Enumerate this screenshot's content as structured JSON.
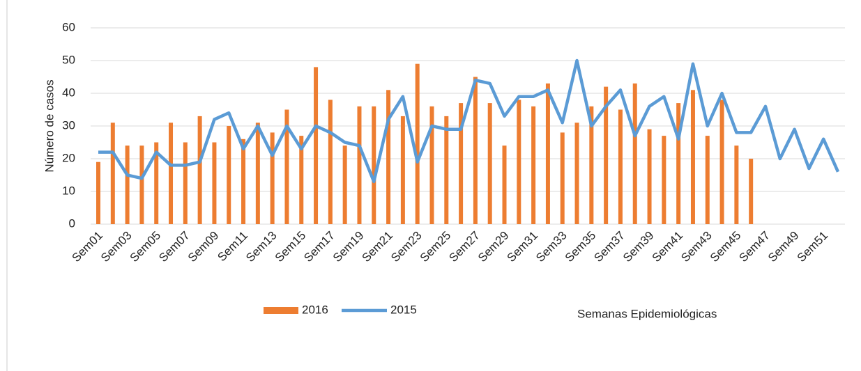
{
  "chart_data": {
    "type": "bar_line",
    "y_label": "Número de casos",
    "x_label": "Semanas Epidemiológicas",
    "categories": [
      "Sem01",
      null,
      "Sem03",
      null,
      "Sem05",
      null,
      "Sem07",
      null,
      "Sem09",
      null,
      "Sem11",
      null,
      "Sem13",
      null,
      "Sem15",
      null,
      "Sem17",
      null,
      "Sem19",
      null,
      "Sem21",
      null,
      "Sem23",
      null,
      "Sem25",
      null,
      "Sem27",
      null,
      "Sem29",
      null,
      "Sem31",
      null,
      "Sem33",
      null,
      "Sem35",
      null,
      "Sem37",
      null,
      "Sem39",
      null,
      "Sem41",
      null,
      "Sem43",
      null,
      "Sem45",
      null,
      "Sem47",
      null,
      "Sem49",
      null,
      "Sem51",
      null
    ],
    "series": [
      {
        "name": "2016",
        "type": "bar",
        "color": "#ed7d31",
        "values": [
          19,
          31,
          24,
          24,
          25,
          31,
          25,
          33,
          25,
          30,
          26,
          31,
          28,
          35,
          27,
          48,
          38,
          24,
          36,
          36,
          41,
          33,
          49,
          36,
          33,
          37,
          45,
          37,
          24,
          38,
          36,
          43,
          28,
          31,
          36,
          42,
          35,
          43,
          29,
          27,
          37,
          41,
          27,
          38,
          24,
          20,
          null,
          null,
          null,
          null,
          null,
          null
        ]
      },
      {
        "name": "2015",
        "type": "line",
        "color": "#5b9bd5",
        "values": [
          22,
          22,
          15,
          14,
          22,
          18,
          18,
          19,
          32,
          34,
          23,
          30,
          21,
          30,
          23,
          30,
          28,
          25,
          24,
          13,
          32,
          39,
          19,
          30,
          29,
          29,
          44,
          43,
          33,
          39,
          39,
          41,
          31,
          50,
          30,
          36,
          41,
          27,
          36,
          39,
          26,
          49,
          30,
          40,
          28,
          28,
          36,
          20,
          29,
          17,
          26,
          16
        ]
      }
    ],
    "ylim": [
      0,
      60
    ],
    "yticks": [
      0,
      10,
      20,
      30,
      40,
      50,
      60
    ],
    "grid": true
  }
}
